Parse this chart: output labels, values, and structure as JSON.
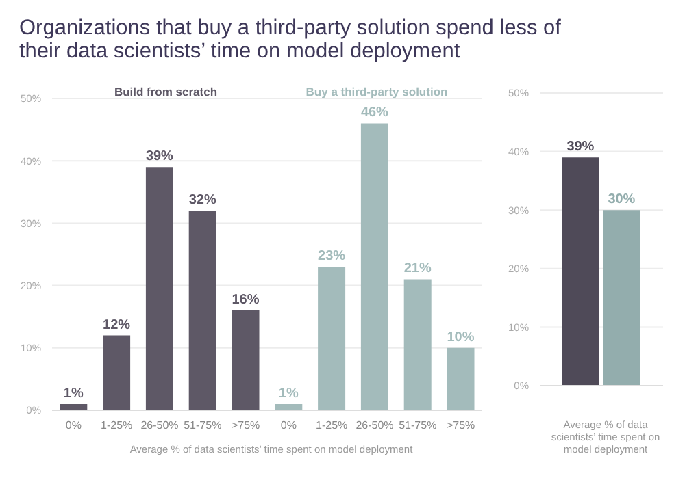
{
  "chart_data": [
    {
      "type": "bar",
      "title": "Organizations that buy a third-party solution spend less of their data scientists’ time on model deployment",
      "xlabel": "Average % of data scientists’ time spent on model deployment",
      "categories": [
        "0%",
        "1-25%",
        "26-50%",
        "51-75%",
        ">75%",
        "0%",
        "1-25%",
        "26-50%",
        "51-75%",
        ">75%"
      ],
      "series": [
        {
          "name": "Build from scratch",
          "color": "#5e5866",
          "values": [
            1,
            12,
            39,
            32,
            16,
            null,
            null,
            null,
            null,
            null
          ],
          "value_labels": [
            "1%",
            "12%",
            "39%",
            "32%",
            "16%",
            null,
            null,
            null,
            null,
            null
          ]
        },
        {
          "name": "Buy a third-party solution",
          "color": "#a3bbbb",
          "values": [
            null,
            null,
            null,
            null,
            null,
            1,
            23,
            46,
            21,
            10
          ],
          "value_labels": [
            null,
            null,
            null,
            null,
            null,
            "1%",
            "23%",
            "46%",
            "21%",
            "10%"
          ]
        }
      ],
      "stacked": true,
      "legend": "top",
      "ylim": [
        0,
        50
      ],
      "yticks": [
        {
          "value": 0,
          "label": "0%"
        },
        {
          "value": 10,
          "label": "10%"
        },
        {
          "value": 20,
          "label": "20%"
        },
        {
          "value": 30,
          "label": "30%"
        },
        {
          "value": 40,
          "label": "40%"
        },
        {
          "value": 50,
          "label": "50%"
        }
      ],
      "grid": "y"
    },
    {
      "type": "bar",
      "xlabel": "Average % of data scientists’ time spent on model deployment",
      "categories": [
        null
      ],
      "series": [
        {
          "color": "#4f4a58",
          "values": [
            39
          ],
          "value_labels": [
            "39%"
          ]
        },
        {
          "color": "#93adad",
          "values": [
            30
          ],
          "value_labels": [
            "30%"
          ]
        }
      ],
      "ylim": [
        0,
        50
      ],
      "yticks": [
        {
          "value": 0,
          "label": "0%"
        },
        {
          "value": 10,
          "label": "10%"
        },
        {
          "value": 20,
          "label": "20%"
        },
        {
          "value": 30,
          "label": "30%"
        },
        {
          "value": 40,
          "label": "40%"
        },
        {
          "value": 50,
          "label": "50%"
        }
      ],
      "grid": "y"
    }
  ]
}
